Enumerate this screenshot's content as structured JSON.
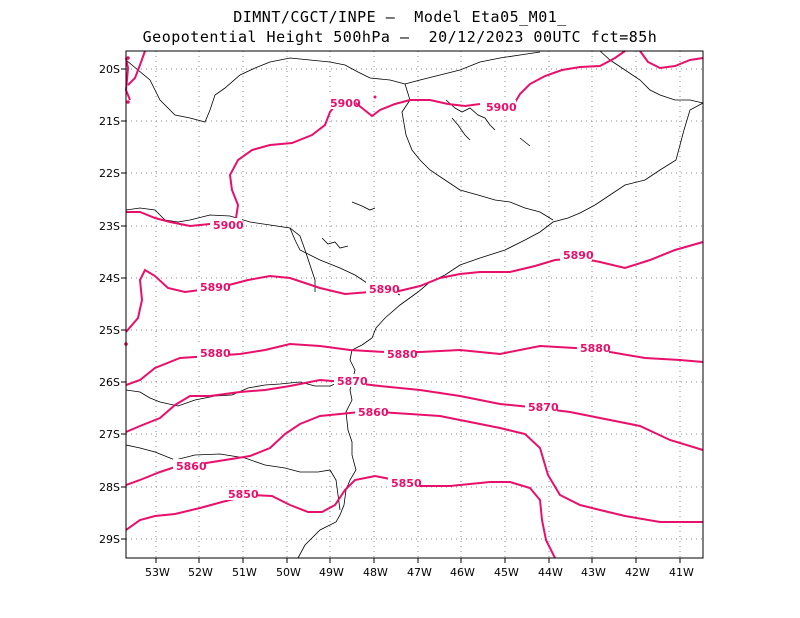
{
  "title": {
    "line1": "DIMNT/CGCT/INPE –  Model Eta05_M01_",
    "line2": "Geopotential Height 500hPa –  20/12/2023 00UTC fct=85h"
  },
  "axes": {
    "lat_labels": [
      "20S",
      "21S",
      "22S",
      "23S",
      "24S",
      "25S",
      "26S",
      "27S",
      "28S",
      "29S"
    ],
    "lon_labels": [
      "53W",
      "52W",
      "51W",
      "50W",
      "49W",
      "48W",
      "47W",
      "46W",
      "45W",
      "44W",
      "43W",
      "42W",
      "41W"
    ]
  },
  "contours": {
    "labels": [
      "5900",
      "5900",
      "5900",
      "5890",
      "5890",
      "5890",
      "5880",
      "5880",
      "5880",
      "5870",
      "5870",
      "5860",
      "5860",
      "5850",
      "5850"
    ]
  },
  "colors": {
    "contour": "#e8106a",
    "coast": "#000000",
    "grid": "#888888"
  }
}
